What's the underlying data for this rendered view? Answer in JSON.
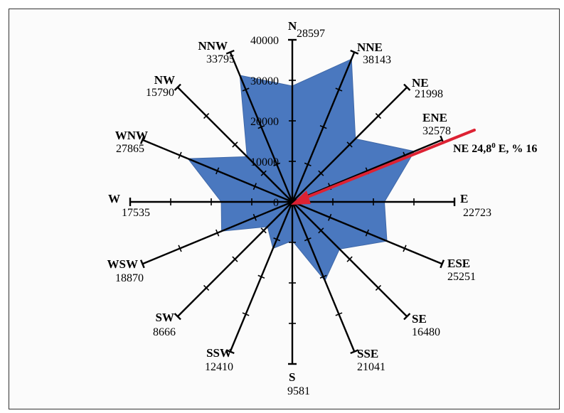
{
  "chart_data": {
    "type": "radar",
    "directions": [
      "N",
      "NNE",
      "NE",
      "ENE",
      "E",
      "ESE",
      "SE",
      "SSE",
      "S",
      "SSW",
      "SW",
      "WSW",
      "W",
      "WNW",
      "NW",
      "NNW"
    ],
    "values": [
      28597,
      38143,
      21998,
      32578,
      22723,
      25251,
      16480,
      21041,
      9581,
      12410,
      8666,
      18870,
      17535,
      27865,
      15790,
      33795
    ],
    "tick_labels": [
      "0",
      "10000",
      "20000",
      "30000",
      "40000"
    ],
    "r_range": [
      0,
      40000
    ],
    "fill_color": "#4a78bf",
    "arrow_color": "#dd2233",
    "annotation": {
      "prefix": "NE 24,8",
      "superscript": "0",
      "suffix": " E, % 16"
    }
  }
}
